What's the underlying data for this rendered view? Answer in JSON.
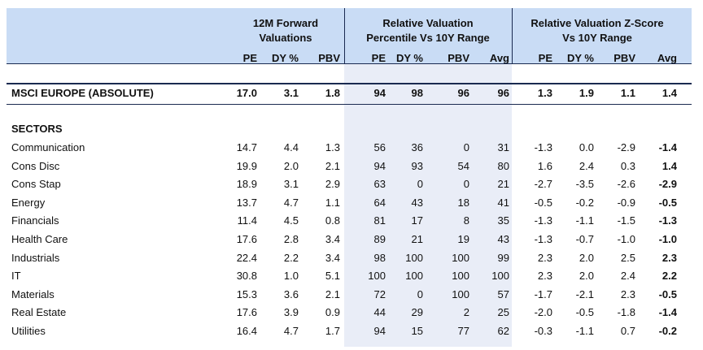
{
  "columns": {
    "group1": {
      "label_line1": "12M Forward",
      "label_line2": "Valuations",
      "subs": [
        "PE",
        "DY %",
        "PBV"
      ]
    },
    "group2": {
      "label_line1": "Relative Valuation",
      "label_line2": "Percentile Vs 10Y Range",
      "subs": [
        "PE",
        "DY %",
        "PBV",
        "Avg"
      ]
    },
    "group3": {
      "label_line1": "Relative Valuation Z-Score",
      "label_line2": "Vs 10Y Range",
      "subs": [
        "PE",
        "DY %",
        "PBV",
        "Avg"
      ]
    }
  },
  "index_row": {
    "label": "MSCI EUROPE (ABSOLUTE)",
    "values": [
      "17.0",
      "3.1",
      "1.8",
      "94",
      "98",
      "96",
      "96",
      "1.3",
      "1.9",
      "1.1",
      "1.4"
    ]
  },
  "sectors_heading": "SECTORS",
  "rows": [
    {
      "label": "Communication",
      "values": [
        "14.7",
        "4.4",
        "1.3",
        "56",
        "36",
        "0",
        "31",
        "-1.3",
        "0.0",
        "-2.9",
        "-1.4"
      ]
    },
    {
      "label": "Cons Disc",
      "values": [
        "19.9",
        "2.0",
        "2.1",
        "94",
        "93",
        "54",
        "80",
        "1.6",
        "2.4",
        "0.3",
        "1.4"
      ]
    },
    {
      "label": "Cons Stap",
      "values": [
        "18.9",
        "3.1",
        "2.9",
        "63",
        "0",
        "0",
        "21",
        "-2.7",
        "-3.5",
        "-2.6",
        "-2.9"
      ]
    },
    {
      "label": "Energy",
      "values": [
        "13.7",
        "4.7",
        "1.1",
        "64",
        "43",
        "18",
        "41",
        "-0.5",
        "-0.2",
        "-0.9",
        "-0.5"
      ]
    },
    {
      "label": "Financials",
      "values": [
        "11.4",
        "4.5",
        "0.8",
        "81",
        "17",
        "8",
        "35",
        "-1.3",
        "-1.1",
        "-1.5",
        "-1.3"
      ]
    },
    {
      "label": "Health Care",
      "values": [
        "17.6",
        "2.8",
        "3.4",
        "89",
        "21",
        "19",
        "43",
        "-1.3",
        "-0.7",
        "-1.0",
        "-1.0"
      ]
    },
    {
      "label": "Industrials",
      "values": [
        "22.4",
        "2.2",
        "3.4",
        "98",
        "100",
        "100",
        "99",
        "2.3",
        "2.0",
        "2.5",
        "2.3"
      ]
    },
    {
      "label": "IT",
      "values": [
        "30.8",
        "1.0",
        "5.1",
        "100",
        "100",
        "100",
        "100",
        "2.3",
        "2.0",
        "2.4",
        "2.2"
      ]
    },
    {
      "label": "Materials",
      "values": [
        "15.3",
        "3.6",
        "2.1",
        "72",
        "0",
        "100",
        "57",
        "-1.7",
        "-2.1",
        "2.3",
        "-0.5"
      ]
    },
    {
      "label": "Real Estate",
      "values": [
        "17.6",
        "3.9",
        "0.9",
        "44",
        "29",
        "2",
        "25",
        "-2.0",
        "-0.5",
        "-1.8",
        "-1.4"
      ]
    },
    {
      "label": "Utilities",
      "values": [
        "16.4",
        "4.7",
        "1.7",
        "94",
        "15",
        "77",
        "62",
        "-0.3",
        "-1.1",
        "0.7",
        "-0.2"
      ]
    }
  ]
}
